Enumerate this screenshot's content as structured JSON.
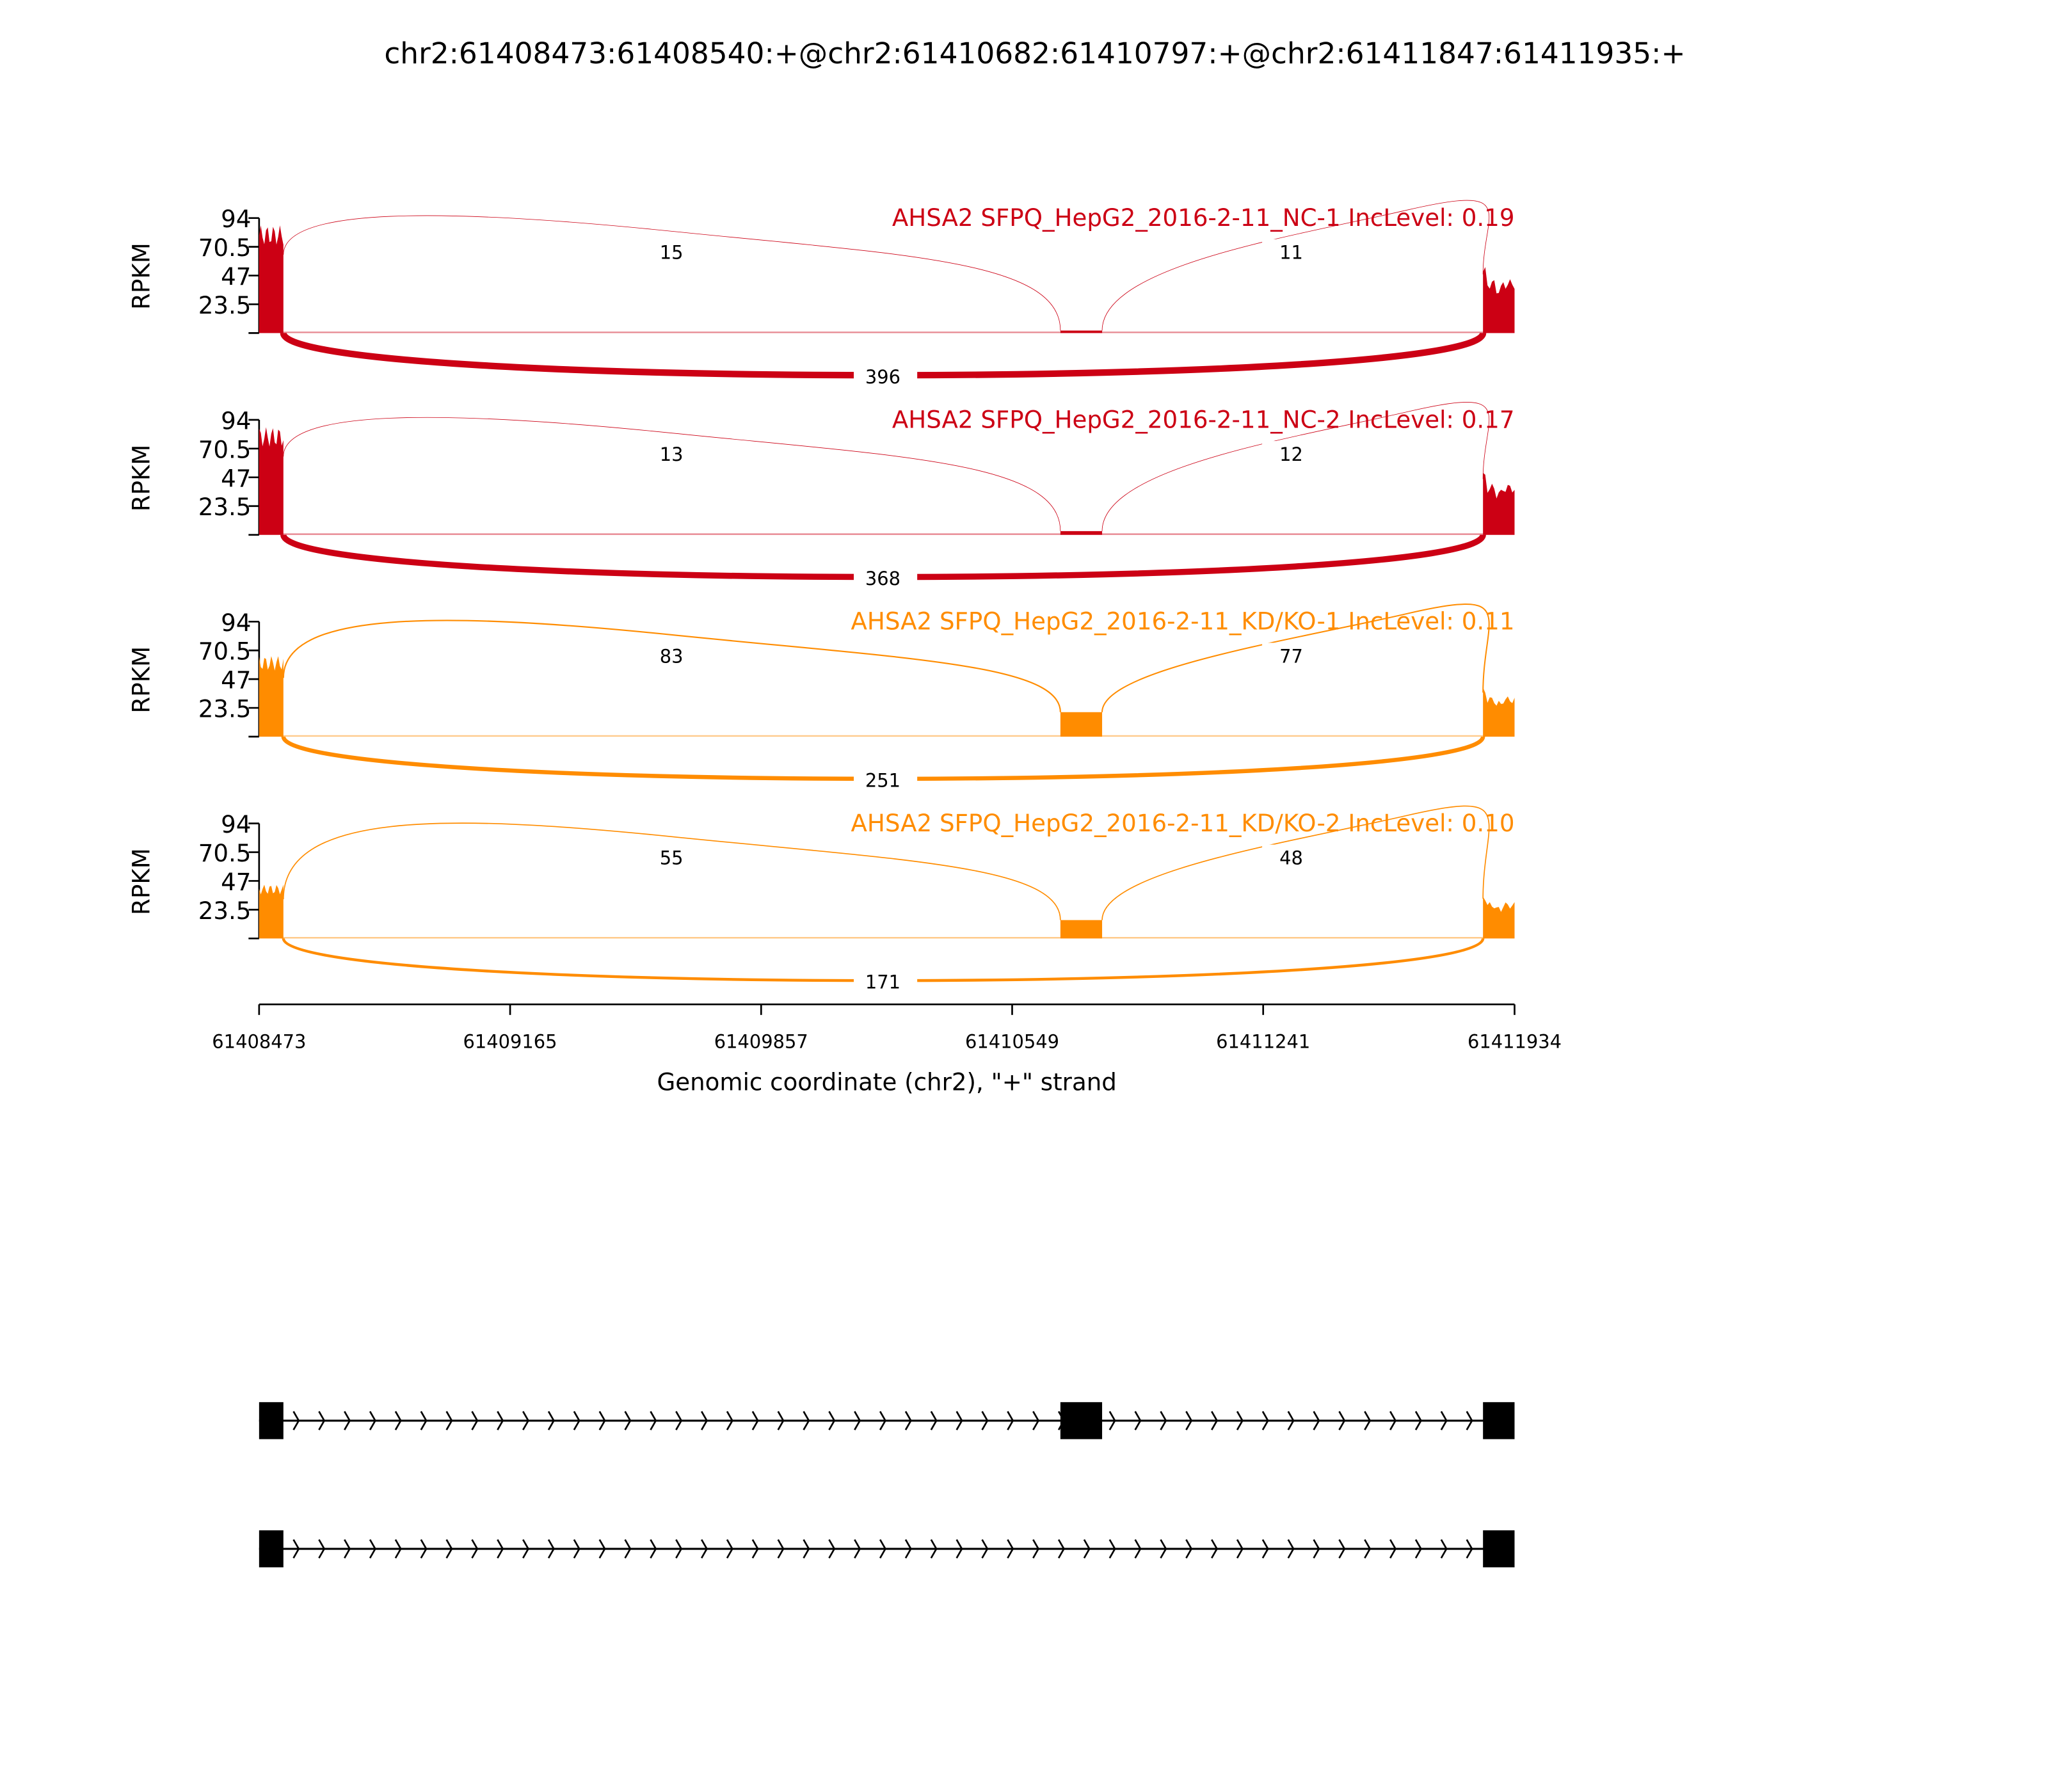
{
  "chart_data": {
    "type": "sashimi",
    "title": "chr2:61408473:61408540:+@chr2:61410682:61410797:+@chr2:61411847:61411935:+",
    "xlabel": "Genomic coordinate (chr2), \"+\" strand",
    "ylabel": "RPKM",
    "xlim": [
      61408473,
      61411934
    ],
    "xticks": [
      "61408473",
      "61409165",
      "61409857",
      "61410549",
      "61411241",
      "61411934"
    ],
    "ylim": [
      0,
      94
    ],
    "yticks": [
      "23.5",
      "47",
      "70.5",
      "94"
    ],
    "exons": [
      {
        "start": 61408473,
        "end": 61408540
      },
      {
        "start": 61410682,
        "end": 61410797
      },
      {
        "start": 61411847,
        "end": 61411935
      }
    ],
    "transcripts": [
      {
        "exons": [
          0,
          1,
          2
        ]
      },
      {
        "exons": [
          0,
          2
        ]
      }
    ],
    "samples": [
      {
        "label": "AHSA2 SFPQ_HepG2_2016-2-11_NC-1 IncLevel: 0.19",
        "color": "#cc0014",
        "exon_coverage": [
          80,
          2,
          40
        ],
        "junctions": {
          "upstream": "15",
          "downstream": "11",
          "skipping": "396"
        }
      },
      {
        "label": "AHSA2 SFPQ_HepG2_2016-2-11_NC-2 IncLevel: 0.17",
        "color": "#cc0014",
        "exon_coverage": [
          80,
          3,
          38
        ],
        "junctions": {
          "upstream": "13",
          "downstream": "12",
          "skipping": "368"
        }
      },
      {
        "label": "AHSA2 SFPQ_HepG2_2016-2-11_KD/KO-1 IncLevel: 0.11",
        "color": "#ff8c00",
        "exon_coverage": [
          60,
          20,
          30
        ],
        "junctions": {
          "upstream": "83",
          "downstream": "77",
          "skipping": "251"
        }
      },
      {
        "label": "AHSA2 SFPQ_HepG2_2016-2-11_KD/KO-2 IncLevel: 0.10",
        "color": "#ff8c00",
        "exon_coverage": [
          40,
          15,
          27
        ],
        "junctions": {
          "upstream": "55",
          "downstream": "48",
          "skipping": "171"
        }
      }
    ]
  }
}
